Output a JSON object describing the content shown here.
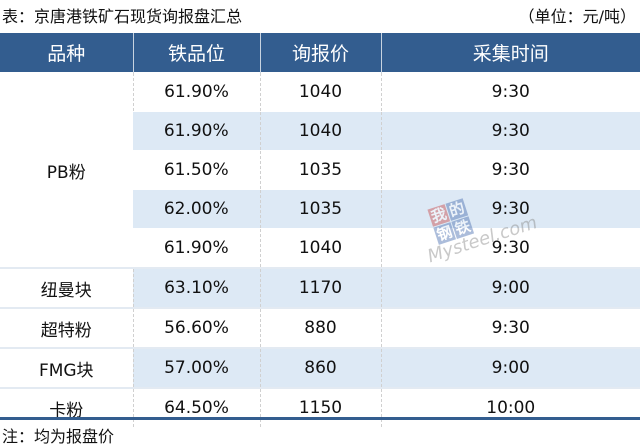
{
  "title": "表：京唐港铁矿石现货询报盘汇总",
  "unit": "（单位：元/吨）",
  "headers": [
    "品种",
    "铁品位",
    "询报价",
    "采集时间"
  ],
  "groups": [
    {
      "name": "PB粉",
      "rows": [
        {
          "grade": "61.90%",
          "price": "1040",
          "time": "9:30"
        },
        {
          "grade": "61.90%",
          "price": "1040",
          "time": "9:30"
        },
        {
          "grade": "61.50%",
          "price": "1035",
          "time": "9:30"
        },
        {
          "grade": "62.00%",
          "price": "1035",
          "time": "9:30"
        },
        {
          "grade": "61.90%",
          "price": "1040",
          "time": "9:30"
        }
      ]
    },
    {
      "name": "纽曼块",
      "rows": [
        {
          "grade": "63.10%",
          "price": "1170",
          "time": "9:00"
        }
      ]
    },
    {
      "name": "超特粉",
      "rows": [
        {
          "grade": "56.60%",
          "price": "880",
          "time": "9:30"
        }
      ]
    },
    {
      "name": "FMG块",
      "rows": [
        {
          "grade": "57.00%",
          "price": "860",
          "time": "9:00"
        }
      ]
    },
    {
      "name": "卡粉",
      "rows": [
        {
          "grade": "64.50%",
          "price": "1150",
          "time": "10:00"
        }
      ]
    }
  ],
  "note": "注：均为报盘价",
  "watermark": {
    "cn": [
      "我",
      "的",
      "钢",
      "铁"
    ],
    "en": "Mysteel.com"
  },
  "colors": {
    "header": "#335d8f",
    "shade": "#dde9f5"
  }
}
